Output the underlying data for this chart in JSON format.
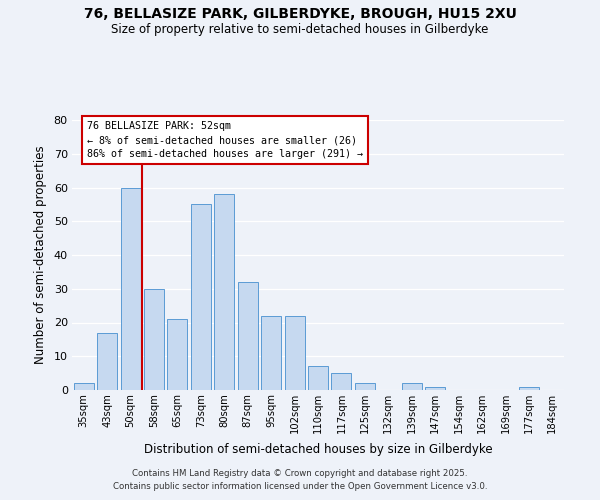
{
  "title": "76, BELLASIZE PARK, GILBERDYKE, BROUGH, HU15 2XU",
  "subtitle": "Size of property relative to semi-detached houses in Gilberdyke",
  "xlabel": "Distribution of semi-detached houses by size in Gilberdyke",
  "ylabel": "Number of semi-detached properties",
  "bar_labels": [
    "35sqm",
    "43sqm",
    "50sqm",
    "58sqm",
    "65sqm",
    "73sqm",
    "80sqm",
    "87sqm",
    "95sqm",
    "102sqm",
    "110sqm",
    "117sqm",
    "125sqm",
    "132sqm",
    "139sqm",
    "147sqm",
    "154sqm",
    "162sqm",
    "169sqm",
    "177sqm",
    "184sqm"
  ],
  "bar_values": [
    2,
    17,
    60,
    30,
    21,
    55,
    58,
    32,
    22,
    22,
    7,
    5,
    2,
    0,
    2,
    1,
    0,
    0,
    0,
    1,
    0
  ],
  "bar_color": "#c6d9f0",
  "bar_edge_color": "#5b9bd5",
  "ylim": [
    0,
    80
  ],
  "yticks": [
    0,
    10,
    20,
    30,
    40,
    50,
    60,
    70,
    80
  ],
  "vline_index": 2,
  "vline_color": "#cc0000",
  "annotation_title": "76 BELLASIZE PARK: 52sqm",
  "annotation_line1": "← 8% of semi-detached houses are smaller (26)",
  "annotation_line2": "86% of semi-detached houses are larger (291) →",
  "annotation_box_facecolor": "#ffffff",
  "annotation_box_edgecolor": "#cc0000",
  "footer_line1": "Contains HM Land Registry data © Crown copyright and database right 2025.",
  "footer_line2": "Contains public sector information licensed under the Open Government Licence v3.0.",
  "background_color": "#eef2f9",
  "grid_color": "#ffffff"
}
